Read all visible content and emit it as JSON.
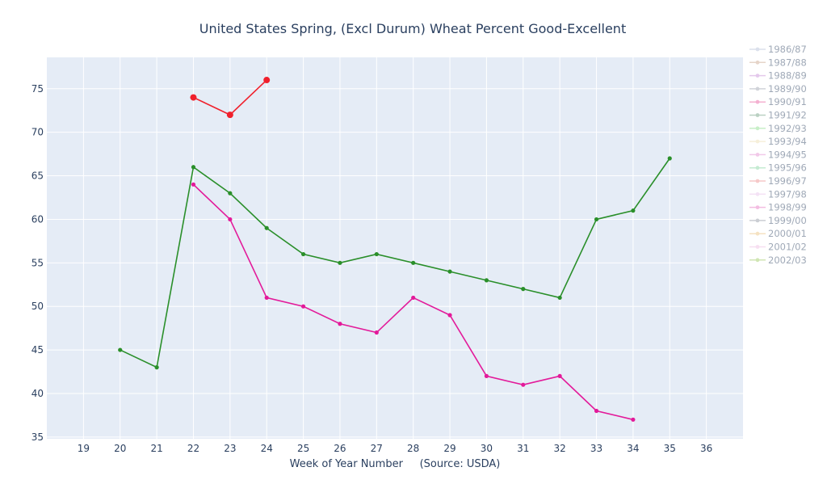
{
  "chart_data": {
    "type": "line",
    "title": "United States Spring, (Excl Durum) Wheat Percent Good-Excellent",
    "xlabel": "Week of Year Number     (Source: USDA)",
    "ylabel": "",
    "xlim": [
      18,
      37
    ],
    "ylim": [
      34.8,
      78.6
    ],
    "xticks": [
      19,
      20,
      21,
      22,
      23,
      24,
      25,
      26,
      27,
      28,
      29,
      30,
      31,
      32,
      33,
      34,
      35,
      36
    ],
    "yticks": [
      35,
      40,
      45,
      50,
      55,
      60,
      65,
      70,
      75
    ],
    "grid": true,
    "legend_position": "right",
    "series": [
      {
        "name": "1986/87",
        "color": "#b0bcd6",
        "dim": true,
        "x": [],
        "y": []
      },
      {
        "name": "1987/88",
        "color": "#c8a48a",
        "dim": true,
        "x": [],
        "y": []
      },
      {
        "name": "1988/89",
        "color": "#c48ad6",
        "dim": true,
        "x": [],
        "y": []
      },
      {
        "name": "1989/90",
        "color": "#9aa0ad",
        "dim": true,
        "x": [],
        "y": []
      },
      {
        "name": "1990/91",
        "color": "#e8559b",
        "dim": true,
        "x": [],
        "y": []
      },
      {
        "name": "1991/92",
        "color": "#6a9a7c",
        "dim": true,
        "x": [],
        "y": []
      },
      {
        "name": "1992/93",
        "color": "#86dd86",
        "dim": true,
        "x": [],
        "y": []
      },
      {
        "name": "1993/94",
        "color": "#ecdcae",
        "dim": true,
        "x": [],
        "y": []
      },
      {
        "name": "1994/95",
        "color": "#e38ad0",
        "dim": true,
        "x": [],
        "y": []
      },
      {
        "name": "1995/96",
        "color": "#7fd39d",
        "dim": true,
        "x": [],
        "y": []
      },
      {
        "name": "1996/97",
        "color": "#ec8a8a",
        "dim": true,
        "x": [],
        "y": []
      },
      {
        "name": "1997/98",
        "color": "#e7c1e9",
        "dim": true,
        "x": [],
        "y": []
      },
      {
        "name": "1998/99",
        "color": "#e66fc0",
        "dim": true,
        "x": [],
        "y": []
      },
      {
        "name": "1999/00",
        "color": "#8d93a0",
        "dim": true,
        "x": [],
        "y": []
      },
      {
        "name": "2000/01",
        "color": "#ebc079",
        "dim": true,
        "x": [],
        "y": []
      },
      {
        "name": "2001/02",
        "color": "#eeb9e1",
        "dim": true,
        "x": [],
        "y": []
      },
      {
        "name": "2002/03",
        "color": "#98c95a",
        "dim": true,
        "x": [],
        "y": []
      },
      {
        "name": "",
        "color": "#e31a9a",
        "dim": false,
        "marker_size": 2.6,
        "x": [
          22,
          23,
          24,
          25,
          26,
          27,
          28,
          29,
          30,
          31,
          32,
          33,
          34
        ],
        "y": [
          64,
          60,
          51,
          50,
          48,
          47,
          51,
          49,
          42,
          41,
          42,
          38,
          37
        ]
      },
      {
        "name": "",
        "color": "#2a8f2a",
        "dim": false,
        "marker_size": 2.6,
        "x": [
          20,
          21,
          22,
          23,
          24,
          25,
          26,
          27,
          28,
          29,
          30,
          31,
          32,
          33,
          34,
          35
        ],
        "y": [
          45,
          43,
          66,
          63,
          59,
          56,
          55,
          56,
          55,
          54,
          53,
          52,
          51,
          60,
          61,
          67
        ]
      },
      {
        "name": "",
        "color": "#f0202c",
        "dim": false,
        "marker_size": 4,
        "x": [
          22,
          23,
          24
        ],
        "y": [
          74,
          72,
          76
        ]
      }
    ]
  }
}
